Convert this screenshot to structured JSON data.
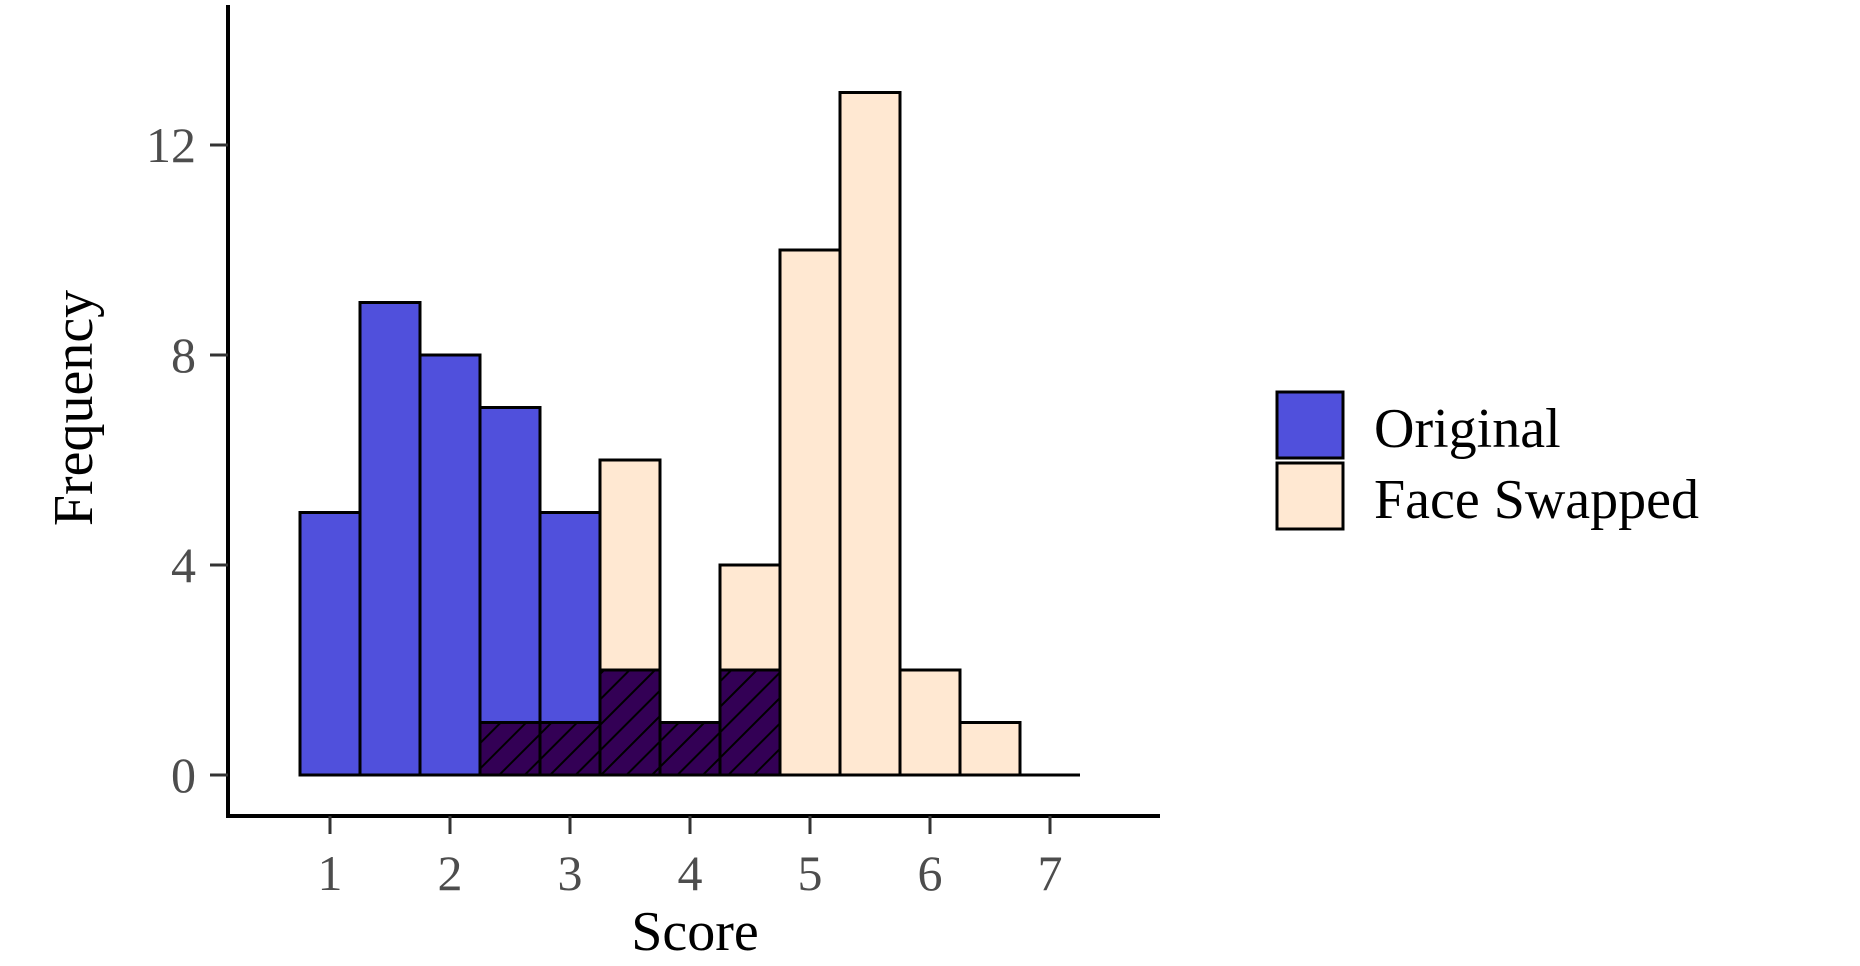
{
  "colors": {
    "original": "#5050dc",
    "face_swapped": "#ffe8d2",
    "overlap": "#330055",
    "outline": "#000000"
  },
  "chart_data": {
    "type": "bar",
    "subtype": "overlaid-histogram",
    "title": "",
    "xlabel": "Score",
    "ylabel": "Frequency",
    "xlim": [
      0.5,
      7.5
    ],
    "ylim": [
      0,
      14
    ],
    "x_ticks": [
      "1",
      "2",
      "3",
      "4",
      "5",
      "6",
      "7"
    ],
    "y_ticks": [
      "0",
      "4",
      "8",
      "12"
    ],
    "bin_width": 0.5,
    "bin_centers": [
      1.0,
      1.5,
      2.0,
      2.5,
      3.0,
      3.5,
      4.0,
      4.5,
      5.0,
      5.5,
      6.0,
      6.5,
      7.0
    ],
    "series": [
      {
        "name": "Original",
        "values": [
          5,
          9,
          8,
          7,
          5,
          2,
          1,
          2,
          0,
          0,
          0,
          0,
          0
        ]
      },
      {
        "name": "Face Swapped",
        "values": [
          0,
          0,
          0,
          1,
          1,
          6,
          1,
          4,
          10,
          13,
          2,
          1,
          0
        ]
      }
    ],
    "overlap_pattern": "diagonal-hatch",
    "legend_position": "right",
    "grid": false
  }
}
